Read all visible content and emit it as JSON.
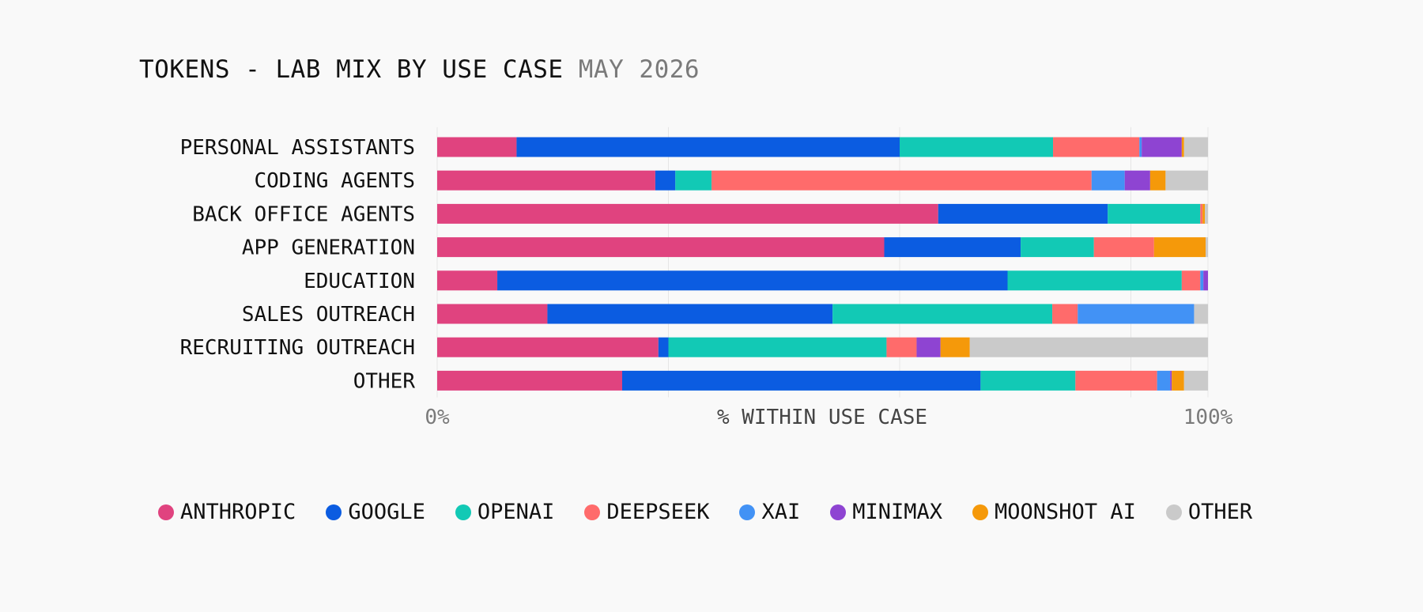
{
  "title": "TOKENS - LAB MIX BY USE CASE",
  "subtitle": "MAY 2026",
  "chart_data": {
    "type": "bar",
    "orientation": "horizontal",
    "stacked": true,
    "normalized": true,
    "title": "TOKENS - LAB MIX BY USE CASE",
    "subtitle": "MAY 2026",
    "xlabel": "% WITHIN USE CASE",
    "ylabel": "",
    "xlim": [
      0,
      100
    ],
    "xticks": [
      "0%",
      "100%"
    ],
    "grid": "vertical",
    "legend_position": "bottom",
    "categories": [
      "PERSONAL ASSISTANTS",
      "CODING AGENTS",
      "BACK OFFICE AGENTS",
      "APP GENERATION",
      "EDUCATION",
      "SALES OUTREACH",
      "RECRUITING OUTREACH",
      "OTHER"
    ],
    "series": [
      {
        "name": "ANTHROPIC",
        "color": "#e0437f",
        "values": [
          10.3,
          28.3,
          65.0,
          58.0,
          7.8,
          14.3,
          28.7,
          24.0
        ]
      },
      {
        "name": "GOOGLE",
        "color": "#0b5ce1",
        "values": [
          49.7,
          2.6,
          22.0,
          17.7,
          66.2,
          37.0,
          1.3,
          46.5
        ]
      },
      {
        "name": "OPENAI",
        "color": "#12c9b5",
        "values": [
          19.9,
          4.7,
          12.0,
          9.5,
          22.6,
          28.5,
          28.3,
          12.3
        ]
      },
      {
        "name": "DEEPSEEK",
        "color": "#ff6b6b",
        "values": [
          11.2,
          49.3,
          0.3,
          7.8,
          2.4,
          3.3,
          3.9,
          10.6
        ]
      },
      {
        "name": "XAI",
        "color": "#4292f5",
        "values": [
          0.3,
          4.3,
          0.0,
          0.0,
          0.4,
          15.1,
          0.0,
          1.7
        ]
      },
      {
        "name": "MINIMAX",
        "color": "#8e44d2",
        "values": [
          5.2,
          3.3,
          0.0,
          0.0,
          0.6,
          0.0,
          3.1,
          0.2
        ]
      },
      {
        "name": "MOONSHOT AI",
        "color": "#f5990a",
        "values": [
          0.3,
          2.0,
          0.3,
          6.7,
          0.0,
          0.0,
          3.8,
          1.6
        ]
      },
      {
        "name": "OTHER",
        "color": "#cacaca",
        "values": [
          3.1,
          5.5,
          0.4,
          0.3,
          0.0,
          1.8,
          30.9,
          3.1
        ]
      }
    ]
  }
}
